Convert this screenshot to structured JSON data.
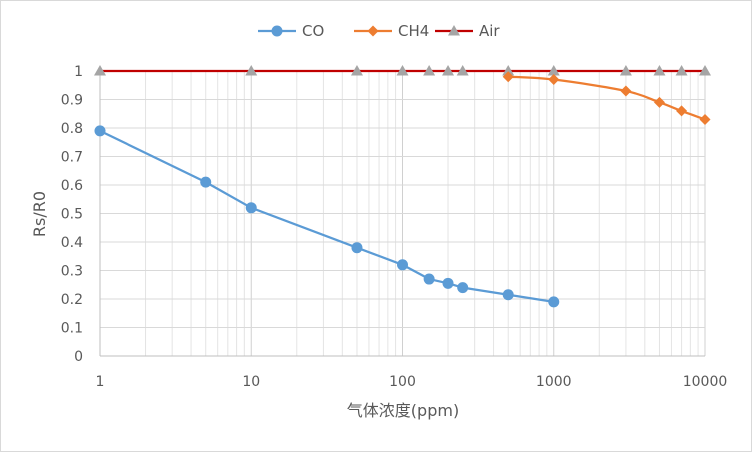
{
  "chart_data": {
    "type": "line",
    "title": "",
    "xlabel": "气体浓度(ppm)",
    "ylabel": "Rs/R0",
    "x_scale": "log",
    "xlim": [
      1,
      10000
    ],
    "ylim": [
      0,
      1
    ],
    "x_ticks": [
      "1",
      "10",
      "100",
      "1000",
      "10000"
    ],
    "y_ticks": [
      "0",
      "0.1",
      "0.2",
      "0.3",
      "0.4",
      "0.5",
      "0.6",
      "0.7",
      "0.8",
      "0.9",
      "1"
    ],
    "grid": true,
    "legend_position": "top",
    "series": [
      {
        "name": "CO",
        "color": "#5b9bd5",
        "marker": "circle",
        "smooth": false,
        "x": [
          1,
          5,
          10,
          50,
          100,
          150,
          200,
          250,
          500,
          1000
        ],
        "y": [
          0.79,
          0.61,
          0.52,
          0.38,
          0.32,
          0.27,
          0.255,
          0.24,
          0.215,
          0.19
        ]
      },
      {
        "name": "CH4",
        "color": "#ed7d31",
        "marker": "diamond",
        "smooth": true,
        "x": [
          500,
          1000,
          3000,
          5000,
          7000,
          10000
        ],
        "y": [
          0.98,
          0.97,
          0.93,
          0.89,
          0.86,
          0.83
        ]
      },
      {
        "name": "Air",
        "color": "#c00000",
        "marker": "triangle",
        "marker_color": "#a5a5a5",
        "smooth": false,
        "x": [
          1,
          10,
          50,
          100,
          150,
          200,
          250,
          500,
          1000,
          3000,
          5000,
          7000,
          10000
        ],
        "y": [
          1,
          1,
          1,
          1,
          1,
          1,
          1,
          1,
          1,
          1,
          1,
          1,
          1
        ]
      }
    ]
  }
}
